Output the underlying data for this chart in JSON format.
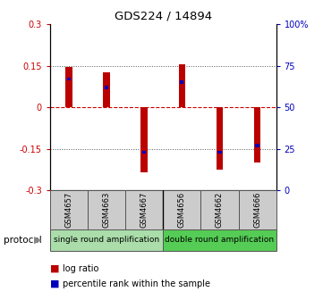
{
  "title": "GDS224 / 14894",
  "samples": [
    "GSM4657",
    "GSM4663",
    "GSM4667",
    "GSM4656",
    "GSM4662",
    "GSM4666"
  ],
  "log_ratios": [
    0.145,
    0.125,
    -0.235,
    0.155,
    -0.225,
    -0.2
  ],
  "percentile_ranks": [
    67,
    62,
    23,
    65,
    23,
    27
  ],
  "ylim_left": [
    -0.3,
    0.3
  ],
  "ylim_right": [
    0,
    100
  ],
  "yticks_left": [
    -0.3,
    -0.15,
    0,
    0.15,
    0.3
  ],
  "yticks_right": [
    0,
    25,
    50,
    75,
    100
  ],
  "ytick_labels_left": [
    "-0.3",
    "-0.15",
    "0",
    "0.15",
    "0.3"
  ],
  "ytick_labels_right": [
    "0",
    "25",
    "50",
    "75",
    "100%"
  ],
  "left_color": "#cc0000",
  "right_color": "#0000bb",
  "bar_red": "#bb0000",
  "bar_blue": "#0000bb",
  "group1_color": "#aaddaa",
  "group2_color": "#55cc55",
  "group1_label": "single round amplification",
  "group2_label": "double round amplification",
  "protocol_label": "protocol",
  "legend_red": "log ratio",
  "legend_blue": "percentile rank within the sample",
  "bar_width": 0.18,
  "blue_bar_width": 0.1,
  "blue_bar_height": 0.012,
  "hline_color": "#cc0000",
  "dotted_color": "#555555",
  "bg_color": "#ffffff",
  "separator_color": "#888888"
}
